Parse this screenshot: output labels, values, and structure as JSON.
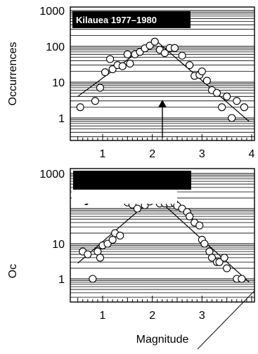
{
  "chart_data": [
    {
      "type": "scatter",
      "title": "Kilauea 1977–1980",
      "xlabel": "",
      "ylabel": "Occurrences",
      "ylog": true,
      "xlim": [
        0.5,
        4.0
      ],
      "ylim": [
        0.5,
        1000
      ],
      "xticks": [
        "1",
        "2",
        "3",
        "4"
      ],
      "yticks": [
        "1",
        "10",
        "100",
        "1000"
      ],
      "grid": "horizontal",
      "arrow_at_magnitude": 2.2,
      "points": [
        [
          0.55,
          2
        ],
        [
          0.85,
          3
        ],
        [
          0.95,
          7
        ],
        [
          1.05,
          19
        ],
        [
          1.15,
          44
        ],
        [
          1.2,
          23
        ],
        [
          1.3,
          30
        ],
        [
          1.4,
          28
        ],
        [
          1.5,
          60
        ],
        [
          1.55,
          33
        ],
        [
          1.65,
          60
        ],
        [
          1.75,
          70
        ],
        [
          1.85,
          88
        ],
        [
          1.95,
          105
        ],
        [
          2.05,
          135
        ],
        [
          2.15,
          80
        ],
        [
          2.25,
          65
        ],
        [
          2.35,
          90
        ],
        [
          2.45,
          90
        ],
        [
          2.6,
          55
        ],
        [
          2.75,
          30
        ],
        [
          2.85,
          15
        ],
        [
          2.95,
          16
        ],
        [
          3.0,
          20
        ],
        [
          3.1,
          11
        ],
        [
          3.2,
          6
        ],
        [
          3.3,
          5
        ],
        [
          3.4,
          2
        ],
        [
          3.5,
          4
        ],
        [
          3.6,
          1
        ],
        [
          3.7,
          3
        ],
        [
          3.85,
          2
        ]
      ],
      "fit_lines": [
        [
          [
            0.5,
            4.0
          ],
          [
            2.05,
            155
          ]
        ],
        [
          [
            2.05,
            155
          ],
          [
            3.95,
            0.8
          ]
        ]
      ]
    },
    {
      "type": "scatter",
      "title": "",
      "xlabel": "Magnitude",
      "ylabel": "Oc",
      "ylog": true,
      "xlim": [
        0.5,
        4.0
      ],
      "ylim": [
        0.5,
        1000
      ],
      "xticks": [
        "1",
        "2",
        "3"
      ],
      "yticks": [
        "1",
        "10",
        "1000"
      ],
      "grid": "horizontal",
      "points": [
        [
          0.6,
          6
        ],
        [
          0.7,
          5
        ],
        [
          0.8,
          1
        ],
        [
          0.9,
          6
        ],
        [
          0.95,
          4
        ],
        [
          1.0,
          9
        ],
        [
          1.1,
          10
        ],
        [
          1.2,
          13
        ],
        [
          1.25,
          20
        ],
        [
          1.35,
          17
        ],
        [
          1.5,
          150
        ],
        [
          1.6,
          130
        ],
        [
          1.7,
          100
        ],
        [
          1.85,
          125
        ],
        [
          1.95,
          160
        ],
        [
          2.05,
          180
        ],
        [
          2.15,
          140
        ],
        [
          2.25,
          140
        ],
        [
          2.35,
          140
        ],
        [
          2.45,
          140
        ],
        [
          2.5,
          120
        ],
        [
          2.6,
          100
        ],
        [
          2.7,
          80
        ],
        [
          2.75,
          60
        ],
        [
          2.85,
          40
        ],
        [
          2.95,
          33
        ],
        [
          3.0,
          13
        ],
        [
          3.05,
          10
        ],
        [
          3.15,
          6
        ],
        [
          3.2,
          4
        ],
        [
          3.3,
          3
        ],
        [
          3.35,
          3
        ],
        [
          3.45,
          4
        ],
        [
          3.5,
          2
        ],
        [
          3.7,
          1
        ],
        [
          3.8,
          1
        ]
      ],
      "fit_lines": [
        [
          [
            0.5,
            2.8
          ],
          [
            2.05,
            220
          ]
        ],
        [
          [
            2.05,
            220
          ],
          [
            3.95,
            0.8
          ]
        ]
      ]
    }
  ]
}
